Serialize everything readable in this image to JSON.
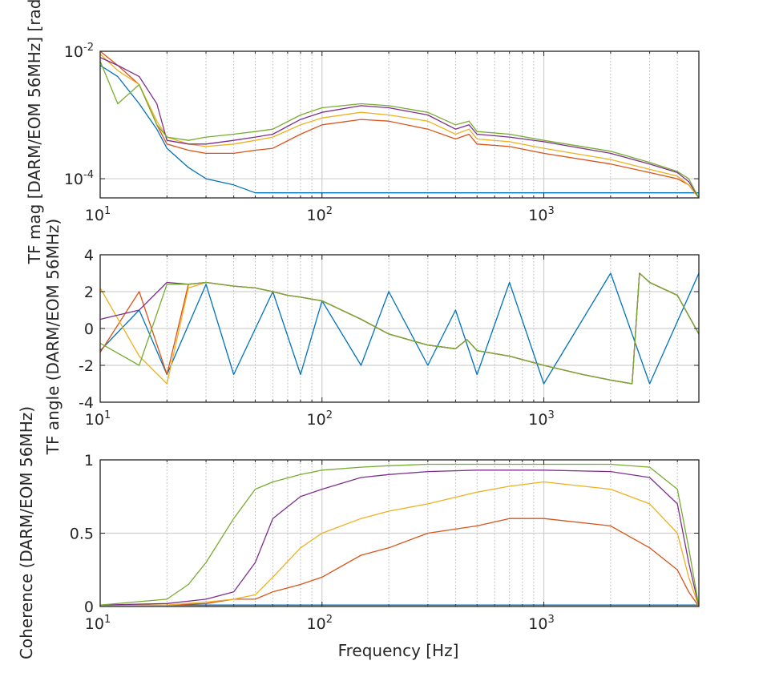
{
  "chart_data": [
    {
      "type": "line",
      "title": "",
      "xlabel": "",
      "ylabel": "TF mag [DARM/EOM 56MHz] [rad]",
      "xscale": "log",
      "yscale": "log",
      "xlim": [
        10,
        5000
      ],
      "ylim": [
        5e-05,
        0.01
      ],
      "xticks": [
        10,
        100,
        1000
      ],
      "xtick_labels": [
        {
          "base": "10",
          "exp": "1"
        },
        {
          "base": "10",
          "exp": "2"
        },
        {
          "base": "10",
          "exp": "3"
        }
      ],
      "yticks": [
        0.0001,
        0.01
      ],
      "ytick_labels": [
        {
          "base": "10",
          "exp": "-4"
        },
        {
          "base": "10",
          "exp": "-2"
        }
      ],
      "grid": true,
      "series": [
        {
          "color": "#0072BD",
          "x": [
            10,
            12,
            15,
            18,
            20,
            25,
            30,
            40,
            50,
            60,
            80,
            100,
            150,
            200,
            300,
            500,
            1000,
            2000,
            5000
          ],
          "y": [
            0.006,
            0.004,
            0.0015,
            0.0006,
            0.0003,
            0.00015,
            0.0001,
            8e-05,
            6e-05,
            6e-05,
            6e-05,
            6e-05,
            6e-05,
            6e-05,
            6e-05,
            6e-05,
            6e-05,
            6e-05,
            6e-05
          ]
        },
        {
          "color": "#D95319",
          "x": [
            10,
            12,
            15,
            18,
            20,
            25,
            30,
            40,
            50,
            60,
            80,
            100,
            150,
            200,
            300,
            400,
            460,
            500,
            700,
            1000,
            2000,
            3000,
            4000,
            4500,
            5000
          ],
          "y": [
            0.01,
            0.006,
            0.003,
            0.0007,
            0.00035,
            0.00028,
            0.00025,
            0.00025,
            0.00028,
            0.0003,
            0.0005,
            0.0007,
            0.00085,
            0.0008,
            0.0006,
            0.00042,
            0.0005,
            0.00035,
            0.00032,
            0.00025,
            0.00017,
            0.000125,
            0.0001,
            8e-05,
            5e-05
          ]
        },
        {
          "color": "#EDB120",
          "x": [
            10,
            12,
            15,
            18,
            20,
            25,
            30,
            40,
            50,
            60,
            80,
            100,
            150,
            200,
            300,
            400,
            460,
            500,
            700,
            1000,
            2000,
            3000,
            4000,
            4500,
            5000
          ],
          "y": [
            0.009,
            0.005,
            0.003,
            0.0008,
            0.00045,
            0.00035,
            0.00032,
            0.00035,
            0.0004,
            0.00045,
            0.0007,
            0.0009,
            0.0011,
            0.001,
            0.0008,
            0.0005,
            0.0006,
            0.00042,
            0.00038,
            0.0003,
            0.0002,
            0.00014,
            0.00011,
            8e-05,
            5e-05
          ]
        },
        {
          "color": "#7E2F8E",
          "x": [
            10,
            12,
            15,
            18,
            20,
            25,
            30,
            40,
            50,
            60,
            80,
            100,
            150,
            200,
            300,
            400,
            460,
            500,
            700,
            1000,
            2000,
            3000,
            4000,
            4500,
            5000
          ],
          "y": [
            0.008,
            0.006,
            0.004,
            0.0015,
            0.0004,
            0.00035,
            0.00035,
            0.0004,
            0.00045,
            0.0005,
            0.00085,
            0.0011,
            0.0014,
            0.0013,
            0.001,
            0.0006,
            0.0007,
            0.0005,
            0.00045,
            0.00038,
            0.00025,
            0.00017,
            0.000125,
            9e-05,
            5e-05
          ]
        },
        {
          "color": "#77AC30",
          "x": [
            10,
            12,
            15,
            18,
            20,
            25,
            30,
            40,
            50,
            60,
            80,
            100,
            150,
            200,
            300,
            400,
            460,
            500,
            700,
            1000,
            2000,
            3000,
            4000,
            4500,
            5000
          ],
          "y": [
            0.007,
            0.0015,
            0.003,
            0.0007,
            0.00045,
            0.0004,
            0.00045,
            0.0005,
            0.00055,
            0.0006,
            0.001,
            0.0013,
            0.0015,
            0.0014,
            0.0011,
            0.0007,
            0.0008,
            0.00055,
            0.0005,
            0.0004,
            0.00027,
            0.00018,
            0.00013,
            0.0001,
            5e-05
          ]
        }
      ]
    },
    {
      "type": "line",
      "title": "",
      "xlabel": "",
      "ylabel": "TF angle (DARM/EOM 56MHz)",
      "xscale": "log",
      "yscale": "linear",
      "xlim": [
        10,
        5000
      ],
      "ylim": [
        -4,
        4
      ],
      "xticks": [
        10,
        100,
        1000
      ],
      "xtick_labels": [
        {
          "base": "10",
          "exp": "1"
        },
        {
          "base": "10",
          "exp": "2"
        },
        {
          "base": "10",
          "exp": "3"
        }
      ],
      "yticks": [
        -4,
        -2,
        0,
        2,
        4
      ],
      "ytick_labels": [
        "-4",
        "-2",
        "0",
        "2",
        "4"
      ],
      "grid": true,
      "series": [
        {
          "color": "#0072BD",
          "x": [
            10,
            15,
            20,
            30,
            40,
            60,
            80,
            100,
            150,
            200,
            300,
            400,
            500,
            700,
            1000,
            2000,
            3000,
            5000
          ],
          "y": [
            -1.2,
            1,
            -2.5,
            2.4,
            -2.5,
            2,
            -2.5,
            1.5,
            -2,
            2,
            -2,
            1,
            -2.5,
            2.5,
            -3,
            3,
            -3,
            3
          ]
        },
        {
          "color": "#D95319",
          "x": [
            10,
            15,
            20,
            25,
            30,
            40,
            50,
            60,
            70,
            80,
            100,
            150,
            200,
            300,
            400,
            450,
            500,
            700,
            1000,
            1500,
            2000,
            2500,
            2700,
            3000,
            4000,
            5000
          ],
          "y": [
            -1.3,
            2,
            -2.5,
            2.4,
            2.5,
            2.3,
            2.2,
            2,
            1.8,
            1.7,
            1.5,
            0.5,
            -0.3,
            -0.9,
            -1.1,
            -0.6,
            -1.2,
            -1.5,
            -2,
            -2.5,
            -2.8,
            -3,
            3,
            2.5,
            1.8,
            -0.3
          ]
        },
        {
          "color": "#EDB120",
          "x": [
            10,
            15,
            20,
            25,
            30,
            40,
            50,
            60,
            70,
            80,
            100,
            150,
            200,
            300,
            400,
            450,
            500,
            700,
            1000,
            1500,
            2000,
            2500,
            2700,
            3000,
            4000,
            5000
          ],
          "y": [
            2.2,
            -1.5,
            -3,
            2.2,
            2.5,
            2.3,
            2.2,
            2,
            1.8,
            1.7,
            1.5,
            0.5,
            -0.3,
            -0.9,
            -1.1,
            -0.6,
            -1.2,
            -1.5,
            -2,
            -2.5,
            -2.8,
            -3,
            3,
            2.5,
            1.8,
            -0.3
          ]
        },
        {
          "color": "#7E2F8E",
          "x": [
            10,
            15,
            20,
            25,
            30,
            40,
            50,
            60,
            70,
            80,
            100,
            150,
            200,
            300,
            400,
            450,
            500,
            700,
            1000,
            1500,
            2000,
            2500,
            2700,
            3000,
            4000,
            5000
          ],
          "y": [
            0.5,
            1,
            2.5,
            2.4,
            2.5,
            2.3,
            2.2,
            2,
            1.8,
            1.7,
            1.5,
            0.5,
            -0.3,
            -0.9,
            -1.1,
            -0.6,
            -1.2,
            -1.5,
            -2,
            -2.5,
            -2.8,
            -3,
            3,
            2.5,
            1.8,
            -0.3
          ]
        },
        {
          "color": "#77AC30",
          "x": [
            10,
            15,
            20,
            25,
            30,
            40,
            50,
            60,
            70,
            80,
            100,
            150,
            200,
            300,
            400,
            450,
            500,
            700,
            1000,
            1500,
            2000,
            2500,
            2700,
            3000,
            4000,
            5000
          ],
          "y": [
            -0.8,
            -2,
            2.4,
            2.4,
            2.5,
            2.3,
            2.2,
            2,
            1.8,
            1.7,
            1.5,
            0.5,
            -0.3,
            -0.9,
            -1.1,
            -0.6,
            -1.2,
            -1.5,
            -2,
            -2.5,
            -2.8,
            -3,
            3,
            2.5,
            1.8,
            -0.3
          ]
        }
      ]
    },
    {
      "type": "line",
      "title": "",
      "xlabel": "Frequency [Hz]",
      "ylabel": "Coherence (DARM/EOM 56MHz)",
      "xscale": "log",
      "yscale": "linear",
      "xlim": [
        10,
        5000
      ],
      "ylim": [
        0,
        1
      ],
      "xticks": [
        10,
        100,
        1000
      ],
      "xtick_labels": [
        {
          "base": "10",
          "exp": "1"
        },
        {
          "base": "10",
          "exp": "2"
        },
        {
          "base": "10",
          "exp": "3"
        }
      ],
      "yticks": [
        0,
        0.5,
        1
      ],
      "ytick_labels": [
        "0",
        "0.5",
        "1"
      ],
      "grid": true,
      "series": [
        {
          "color": "#0072BD",
          "x": [
            10,
            100,
            1000,
            5000
          ],
          "y": [
            0.01,
            0.01,
            0.01,
            0.01
          ]
        },
        {
          "color": "#D95319",
          "x": [
            10,
            20,
            30,
            40,
            50,
            60,
            80,
            100,
            150,
            200,
            300,
            500,
            700,
            1000,
            2000,
            3000,
            4000,
            4500,
            5000
          ],
          "y": [
            0.01,
            0.01,
            0.02,
            0.05,
            0.05,
            0.1,
            0.15,
            0.2,
            0.35,
            0.4,
            0.5,
            0.55,
            0.6,
            0.6,
            0.55,
            0.4,
            0.25,
            0.1,
            0
          ]
        },
        {
          "color": "#EDB120",
          "x": [
            10,
            20,
            30,
            40,
            50,
            60,
            80,
            100,
            150,
            200,
            300,
            500,
            700,
            1000,
            2000,
            3000,
            4000,
            4500,
            5000
          ],
          "y": [
            0.01,
            0.01,
            0.03,
            0.05,
            0.08,
            0.2,
            0.4,
            0.5,
            0.6,
            0.65,
            0.7,
            0.78,
            0.82,
            0.85,
            0.8,
            0.7,
            0.5,
            0.2,
            0
          ]
        },
        {
          "color": "#7E2F8E",
          "x": [
            10,
            20,
            30,
            40,
            50,
            60,
            80,
            100,
            150,
            200,
            300,
            500,
            700,
            1000,
            2000,
            3000,
            4000,
            4500,
            5000
          ],
          "y": [
            0.01,
            0.02,
            0.05,
            0.1,
            0.3,
            0.6,
            0.75,
            0.8,
            0.88,
            0.9,
            0.92,
            0.93,
            0.93,
            0.93,
            0.92,
            0.88,
            0.7,
            0.3,
            0
          ]
        },
        {
          "color": "#77AC30",
          "x": [
            10,
            20,
            25,
            30,
            40,
            50,
            60,
            80,
            100,
            150,
            200,
            300,
            500,
            700,
            1000,
            2000,
            3000,
            4000,
            4500,
            5000
          ],
          "y": [
            0.01,
            0.05,
            0.15,
            0.3,
            0.6,
            0.8,
            0.85,
            0.9,
            0.93,
            0.95,
            0.96,
            0.97,
            0.97,
            0.97,
            0.97,
            0.97,
            0.95,
            0.8,
            0.4,
            0
          ]
        }
      ]
    }
  ]
}
